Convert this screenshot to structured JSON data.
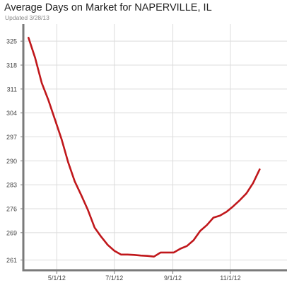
{
  "chart_data": {
    "type": "line",
    "title": "Average Days on Market for NAPERVILLE, IL",
    "subtitle": "Updated 3/28/13",
    "ylim": [
      258,
      330
    ],
    "yticks": [
      261,
      269,
      276,
      283,
      290,
      297,
      304,
      311,
      318,
      325
    ],
    "x_range": [
      "2012-03-28",
      "2012-12-31"
    ],
    "x_ticks": [
      {
        "date": "2012-05-01",
        "label": "5/1/12"
      },
      {
        "date": "2012-07-01",
        "label": "7/1/12"
      },
      {
        "date": "2012-09-01",
        "label": "9/1/12"
      },
      {
        "date": "2012-11-01",
        "label": "11/1/12"
      }
    ],
    "grid": true,
    "line_color": "#c0171b",
    "series": [
      {
        "points": [
          [
            "2012-04-01",
            326.0
          ],
          [
            "2012-04-08",
            320.1
          ],
          [
            "2012-04-15",
            312.8
          ],
          [
            "2012-04-22",
            307.8
          ],
          [
            "2012-04-29",
            302.1
          ],
          [
            "2012-05-06",
            296.4
          ],
          [
            "2012-05-13",
            289.6
          ],
          [
            "2012-05-20",
            284.0
          ],
          [
            "2012-05-27",
            279.9
          ],
          [
            "2012-06-03",
            275.6
          ],
          [
            "2012-06-10",
            270.5
          ],
          [
            "2012-06-17",
            267.8
          ],
          [
            "2012-06-24",
            265.4
          ],
          [
            "2012-07-01",
            263.7
          ],
          [
            "2012-07-08",
            262.6
          ],
          [
            "2012-07-15",
            262.6
          ],
          [
            "2012-07-22",
            262.5
          ],
          [
            "2012-07-29",
            262.3
          ],
          [
            "2012-08-05",
            262.2
          ],
          [
            "2012-08-12",
            262.0
          ],
          [
            "2012-08-19",
            263.2
          ],
          [
            "2012-08-26",
            263.2
          ],
          [
            "2012-09-02",
            263.2
          ],
          [
            "2012-09-09",
            264.3
          ],
          [
            "2012-09-16",
            265.1
          ],
          [
            "2012-09-23",
            266.8
          ],
          [
            "2012-09-30",
            269.5
          ],
          [
            "2012-10-07",
            271.2
          ],
          [
            "2012-10-14",
            273.4
          ],
          [
            "2012-10-21",
            274.0
          ],
          [
            "2012-10-28",
            275.1
          ],
          [
            "2012-11-04",
            276.7
          ],
          [
            "2012-11-11",
            278.5
          ],
          [
            "2012-11-18",
            280.5
          ],
          [
            "2012-11-25",
            283.5
          ],
          [
            "2012-12-02",
            287.5
          ]
        ]
      }
    ]
  }
}
